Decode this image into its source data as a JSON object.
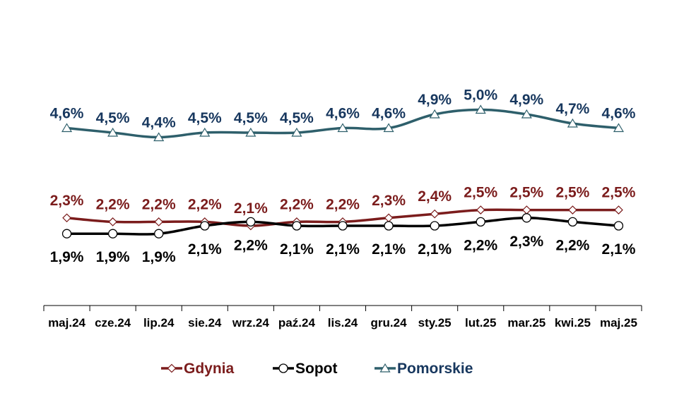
{
  "chart_data": {
    "type": "line",
    "title": "",
    "xlabel": "",
    "ylabel": "",
    "categories": [
      "maj.24",
      "cze.24",
      "lip.24",
      "sie.24",
      "wrz.24",
      "paź.24",
      "lis.24",
      "gru.24",
      "sty.25",
      "lut.25",
      "mar.25",
      "kwi.25",
      "maj.25"
    ],
    "series": [
      {
        "name": "Gdynia",
        "color": "#7b1c1c",
        "marker": "diamond",
        "values": [
          2.3,
          2.2,
          2.2,
          2.2,
          2.1,
          2.2,
          2.2,
          2.3,
          2.4,
          2.5,
          2.5,
          2.5,
          2.5
        ],
        "labels": [
          "2,3%",
          "2,2%",
          "2,2%",
          "2,2%",
          "2,1%",
          "2,2%",
          "2,2%",
          "2,3%",
          "2,4%",
          "2,5%",
          "2,5%",
          "2,5%",
          "2,5%"
        ]
      },
      {
        "name": "Sopot",
        "color": "#000000",
        "marker": "circle",
        "values": [
          1.9,
          1.9,
          1.9,
          2.1,
          2.2,
          2.1,
          2.1,
          2.1,
          2.1,
          2.2,
          2.3,
          2.2,
          2.1
        ],
        "labels": [
          "1,9%",
          "1,9%",
          "1,9%",
          "2,1%",
          "2,2%",
          "2,1%",
          "2,1%",
          "2,1%",
          "2,1%",
          "2,2%",
          "2,3%",
          "2,2%",
          "2,1%"
        ]
      },
      {
        "name": "Pomorskie",
        "color": "#2e5f6b",
        "label_color": "#17375e",
        "marker": "triangle",
        "values": [
          4.6,
          4.5,
          4.4,
          4.5,
          4.5,
          4.5,
          4.6,
          4.6,
          4.9,
          5.0,
          4.9,
          4.7,
          4.6
        ],
        "labels": [
          "4,6%",
          "4,5%",
          "4,4%",
          "4,5%",
          "4,5%",
          "4,5%",
          "4,6%",
          "4,6%",
          "4,9%",
          "5,0%",
          "4,9%",
          "4,7%",
          "4,6%"
        ]
      }
    ],
    "grid": false,
    "legend_position": "bottom"
  }
}
